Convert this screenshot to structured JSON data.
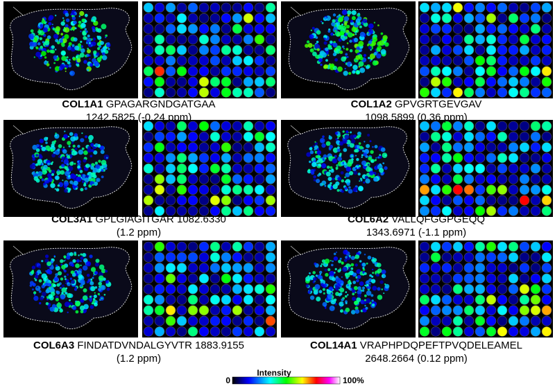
{
  "panels": [
    {
      "gene": "COL1A1",
      "line1": "GPAGARGNDGATGAA",
      "line2": "1242.5825 (-0.24 ppm)"
    },
    {
      "gene": "COL1A2",
      "line1": "GPVGRTGEVGAV",
      "line2": "1098.5899 (0.36 ppm)"
    },
    {
      "gene": "COL3A1",
      "line1": "GPLGIAGITGAR 1082.6330",
      "line2": "(1.2 ppm)"
    },
    {
      "gene": "COL6A2",
      "line1": "VALLQFGGPGEQQ",
      "line2": "1343.6971 (-1.1 ppm)"
    },
    {
      "gene": "COL6A3",
      "line1": "FINDATDVNDALGYVTR 1883.9155",
      "line2": "(1.2 ppm)"
    },
    {
      "gene": "COL14A1",
      "line1": "VRAPHPDQPEFTPVQDELEAMEL",
      "line2": "2648.2664 (0.12 ppm)"
    }
  ],
  "colorbar": {
    "title": "Intensity",
    "min_label": "0",
    "max_label": "100%"
  }
}
